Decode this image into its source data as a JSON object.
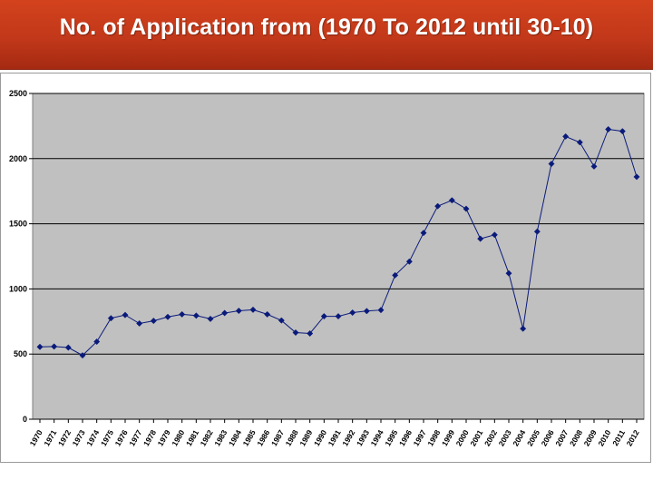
{
  "title": "No. of Application from (1970 To 2012 until 30-10)",
  "colors": {
    "header": "#c2381a",
    "plot_area": "#c0c0c0",
    "series": "#0a1a7a",
    "gridline": "#000000"
  },
  "chart_data": {
    "type": "line",
    "title": "No. of Application from (1970 To 2012 until 30-10)",
    "xlabel": "",
    "ylabel": "",
    "ylim": [
      0,
      2500
    ],
    "yticks": [
      0,
      500,
      1000,
      1500,
      2000,
      2500
    ],
    "grid": "horizontal",
    "legend": "none",
    "marker": "diamond",
    "categories": [
      "1970",
      "1971",
      "1972",
      "1973",
      "1974",
      "1975",
      "1976",
      "1977",
      "1978",
      "1979",
      "1980",
      "1981",
      "1982",
      "1983",
      "1984",
      "1985",
      "1986",
      "1987",
      "1988",
      "1989",
      "1990",
      "1991",
      "1992",
      "1993",
      "1994",
      "1995",
      "1996",
      "1997",
      "1998",
      "1999",
      "2000",
      "2001",
      "2002",
      "2003",
      "2004",
      "2005",
      "2006",
      "2007",
      "2008",
      "2009",
      "2010",
      "2011",
      "2012"
    ],
    "series": [
      {
        "values": [
          555,
          558,
          550,
          490,
          595,
          775,
          800,
          735,
          755,
          785,
          805,
          795,
          770,
          815,
          832,
          840,
          805,
          758,
          665,
          658,
          790,
          790,
          818,
          830,
          838,
          1105,
          1210,
          1430,
          1635,
          1680,
          1615,
          1385,
          1415,
          1120,
          695,
          1440,
          1960,
          2170,
          2125,
          1940,
          2225,
          2210,
          1860
        ]
      }
    ]
  }
}
